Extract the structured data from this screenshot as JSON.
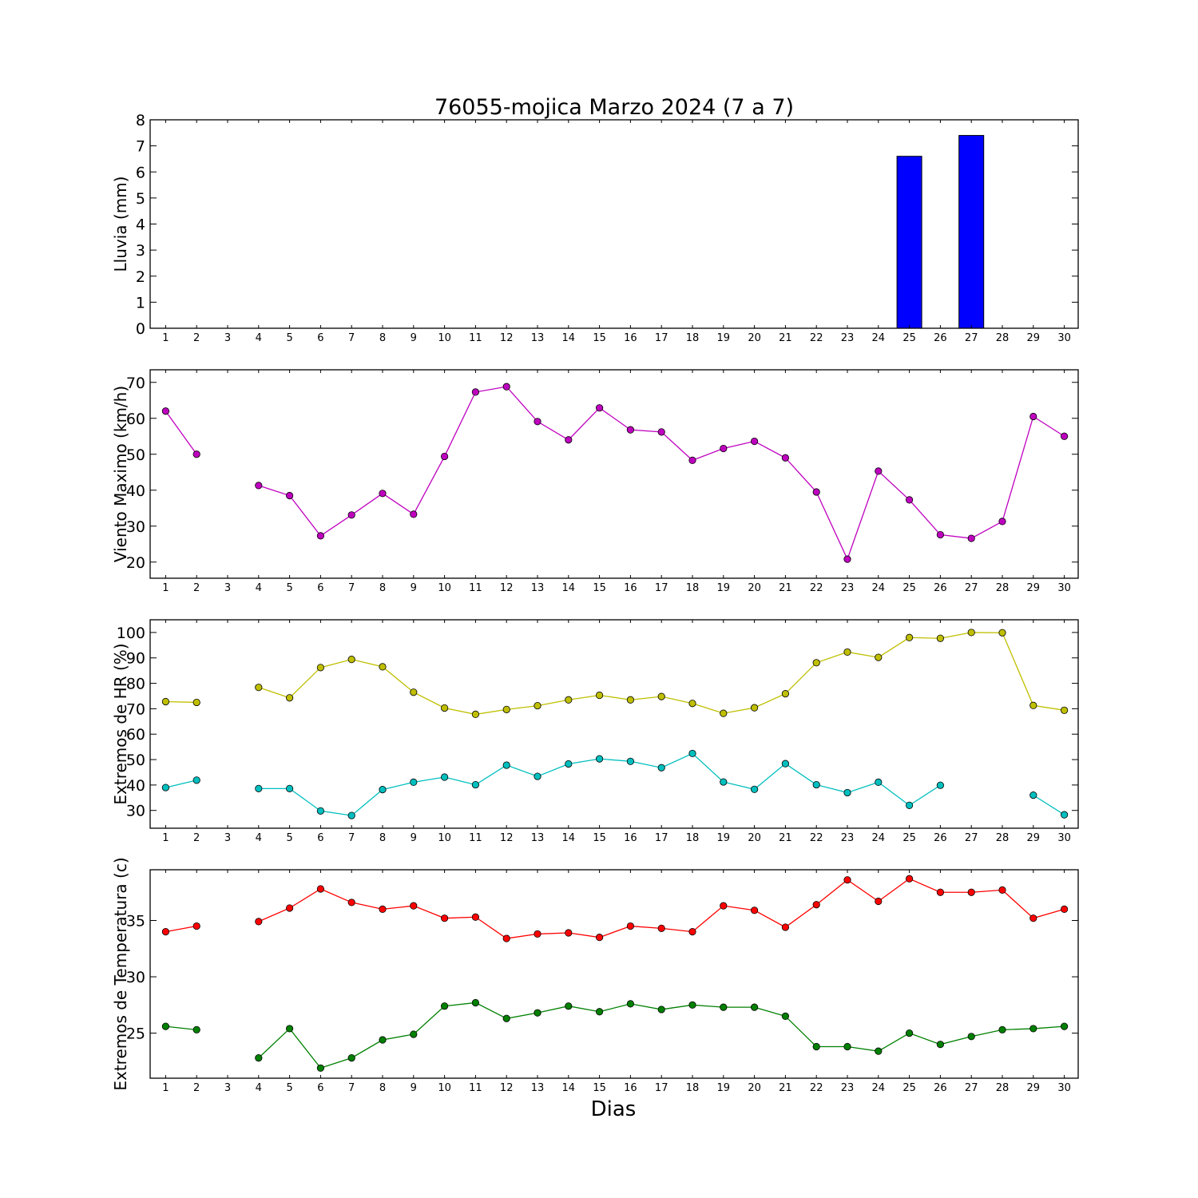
{
  "title": "76055-mojica Marzo 2024  (7 a 7)",
  "xlabel": "Dias",
  "chart_data": [
    {
      "type": "bar",
      "ylabel": "Lluvia (mm)",
      "categories": [
        1,
        2,
        3,
        4,
        5,
        6,
        7,
        8,
        9,
        10,
        11,
        12,
        13,
        14,
        15,
        16,
        17,
        18,
        19,
        20,
        21,
        22,
        23,
        24,
        25,
        26,
        27,
        28,
        29,
        30
      ],
      "values": [
        0,
        0,
        null,
        0,
        0,
        0,
        0,
        0,
        0,
        0,
        0,
        0,
        0,
        0,
        0,
        0,
        0,
        0,
        0,
        0,
        0,
        0,
        0,
        0,
        6.6,
        0,
        7.4,
        0,
        0,
        0
      ],
      "ylim": [
        0,
        8
      ],
      "yticks": [
        0,
        1,
        2,
        3,
        4,
        5,
        6,
        7,
        8
      ],
      "color": "#0000ff"
    },
    {
      "type": "line",
      "ylabel": "Viento Maximo (km/h)",
      "x": [
        1,
        2,
        3,
        4,
        5,
        6,
        7,
        8,
        9,
        10,
        11,
        12,
        13,
        14,
        15,
        16,
        17,
        18,
        19,
        20,
        21,
        22,
        23,
        24,
        25,
        26,
        27,
        28,
        29,
        30
      ],
      "series": [
        {
          "values": [
            62,
            50,
            null,
            41.3,
            38.5,
            27.3,
            33.1,
            39.1,
            33.3,
            49.4,
            67.3,
            68.8,
            59.1,
            54,
            62.9,
            56.8,
            56.2,
            48.3,
            51.6,
            53.6,
            49,
            39.5,
            20.8,
            45.3,
            37.3,
            27.6,
            26.6,
            31.3,
            60.5,
            55
          ],
          "color": "#bf00bf"
        }
      ],
      "ylim": [
        15.5,
        73.5
      ],
      "yticks": [
        20,
        30,
        40,
        50,
        60,
        70
      ]
    },
    {
      "type": "line",
      "ylabel": "Extremos de HR (%)",
      "x": [
        1,
        2,
        3,
        4,
        5,
        6,
        7,
        8,
        9,
        10,
        11,
        12,
        13,
        14,
        15,
        16,
        17,
        18,
        19,
        20,
        21,
        22,
        23,
        24,
        25,
        26,
        27,
        28,
        29,
        30
      ],
      "series": [
        {
          "values": [
            72.8,
            72.5,
            null,
            78.4,
            74.3,
            86.2,
            89.4,
            86.5,
            76.5,
            70.3,
            67.8,
            69.7,
            71.2,
            73.5,
            75.3,
            73.5,
            74.8,
            72.1,
            68.2,
            70.4,
            75.9,
            88.1,
            92.3,
            90.2,
            98,
            97.7,
            100,
            99.9,
            71.3,
            69.4
          ],
          "color": "#bfbf00"
        },
        {
          "values": [
            39,
            41.9,
            null,
            38.6,
            38.6,
            29.8,
            28,
            38.2,
            41.1,
            43.1,
            40.1,
            47.8,
            43.4,
            48.3,
            50.3,
            49.3,
            46.8,
            52.4,
            41.2,
            38.3,
            48.4,
            40.1,
            37,
            41.1,
            32,
            39.9,
            null,
            null,
            36,
            28.3
          ],
          "color": "#00bfbf"
        }
      ],
      "ylim": [
        23,
        105
      ],
      "yticks": [
        30,
        40,
        50,
        60,
        70,
        80,
        90,
        100
      ]
    },
    {
      "type": "line",
      "ylabel": "Extremos de Temperatura (c)",
      "x": [
        1,
        2,
        3,
        4,
        5,
        6,
        7,
        8,
        9,
        10,
        11,
        12,
        13,
        14,
        15,
        16,
        17,
        18,
        19,
        20,
        21,
        22,
        23,
        24,
        25,
        26,
        27,
        28,
        29,
        30
      ],
      "series": [
        {
          "values": [
            34,
            34.5,
            null,
            34.9,
            36.1,
            37.8,
            36.6,
            36,
            36.3,
            35.2,
            35.3,
            33.4,
            33.8,
            33.9,
            33.5,
            34.5,
            34.3,
            34,
            36.3,
            35.9,
            34.4,
            36.4,
            38.6,
            36.7,
            38.7,
            37.5,
            37.5,
            37.7,
            35.2,
            36
          ],
          "color": "#ff0000"
        },
        {
          "values": [
            25.6,
            25.3,
            null,
            22.8,
            25.4,
            21.9,
            22.8,
            24.4,
            24.9,
            27.4,
            27.7,
            26.3,
            26.8,
            27.4,
            26.9,
            27.6,
            27.1,
            27.5,
            27.3,
            27.3,
            26.5,
            23.8,
            23.8,
            23.4,
            25,
            24,
            24.7,
            25.3,
            25.4,
            25.6
          ],
          "color": "#008000"
        }
      ],
      "ylim": [
        21,
        39.5
      ],
      "yticks": [
        25,
        30,
        35
      ]
    }
  ]
}
